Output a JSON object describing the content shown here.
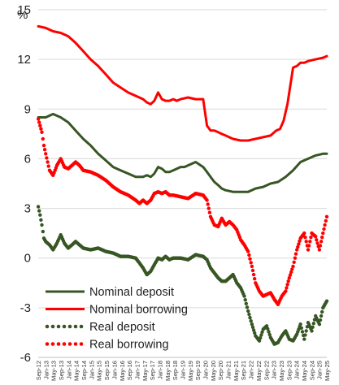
{
  "chart_data": {
    "type": "line",
    "title": "",
    "xlabel": "",
    "ylabel": "",
    "unit_label": "%",
    "ylim": [
      -6,
      15
    ],
    "yticks": [
      "-6",
      "-3",
      "0",
      "3",
      "6",
      "9",
      "12",
      "15"
    ],
    "xlim": [
      2012.667,
      2025.5
    ],
    "xticks": [
      "Sep-12",
      "Jan-13",
      "May-13",
      "Sep-13",
      "Jan-14",
      "May-14",
      "Sep-14",
      "Jan-15",
      "May-15",
      "Sep-15",
      "Jan-16",
      "May-16",
      "Sep-16",
      "Jan-17",
      "May-17",
      "Sep-17",
      "Jan-18",
      "May-18",
      "Sep-18",
      "Jan-19",
      "May-19",
      "Sep-19",
      "Jan-20",
      "May-20",
      "Sep-20",
      "Jan-21",
      "May-21",
      "Sep-21",
      "Jan-22",
      "May-22",
      "Sep-22",
      "Jan-23",
      "May-23",
      "Sep-23",
      "Jan-24",
      "May-24",
      "Sep-24",
      "Jan-25",
      "May-25"
    ],
    "grid": true,
    "legend": "bottom-left",
    "series": [
      {
        "name": "Nominal deposit",
        "style": "solid",
        "color": "#375623",
        "x": [
          2012.67,
          2013.0,
          2013.33,
          2013.67,
          2014.0,
          2014.33,
          2014.67,
          2015.0,
          2015.33,
          2015.67,
          2016.0,
          2016.33,
          2016.67,
          2017.0,
          2017.33,
          2017.5,
          2017.67,
          2017.83,
          2018.0,
          2018.17,
          2018.33,
          2018.5,
          2018.67,
          2018.83,
          2019.0,
          2019.17,
          2019.33,
          2019.67,
          2020.0,
          2020.17,
          2020.33,
          2020.5,
          2020.67,
          2020.83,
          2021.0,
          2021.33,
          2021.67,
          2022.0,
          2022.33,
          2022.67,
          2023.0,
          2023.33,
          2023.67,
          2024.0,
          2024.33,
          2024.67,
          2025.0,
          2025.33,
          2025.5
        ],
        "y": [
          8.5,
          8.5,
          8.7,
          8.5,
          8.2,
          7.7,
          7.2,
          6.8,
          6.3,
          5.9,
          5.5,
          5.3,
          5.1,
          4.9,
          4.9,
          5.0,
          4.9,
          5.1,
          5.5,
          5.4,
          5.2,
          5.2,
          5.3,
          5.4,
          5.5,
          5.5,
          5.6,
          5.8,
          5.5,
          5.2,
          4.9,
          4.6,
          4.4,
          4.2,
          4.1,
          4.0,
          4.0,
          4.0,
          4.2,
          4.3,
          4.5,
          4.6,
          4.9,
          5.3,
          5.8,
          6.0,
          6.2,
          6.3,
          6.3
        ]
      },
      {
        "name": "Nominal borrowing",
        "style": "solid",
        "color": "#ff0000",
        "x": [
          2012.67,
          2013.0,
          2013.33,
          2013.67,
          2014.0,
          2014.33,
          2014.67,
          2015.0,
          2015.33,
          2015.67,
          2016.0,
          2016.33,
          2016.67,
          2017.0,
          2017.33,
          2017.5,
          2017.67,
          2017.83,
          2018.0,
          2018.17,
          2018.33,
          2018.5,
          2018.67,
          2018.83,
          2019.0,
          2019.33,
          2019.67,
          2020.0,
          2020.17,
          2020.33,
          2020.42,
          2020.5,
          2020.67,
          2020.83,
          2021.0,
          2021.33,
          2021.67,
          2022.0,
          2022.33,
          2022.67,
          2023.0,
          2023.25,
          2023.42,
          2023.58,
          2023.75,
          2023.83,
          2023.92,
          2024.0,
          2024.17,
          2024.33,
          2024.5,
          2024.67,
          2025.0,
          2025.33,
          2025.5
        ],
        "y": [
          14.0,
          13.9,
          13.7,
          13.6,
          13.4,
          13.0,
          12.5,
          12.0,
          11.6,
          11.1,
          10.6,
          10.3,
          10.0,
          9.8,
          9.6,
          9.4,
          9.3,
          9.5,
          10.0,
          9.6,
          9.5,
          9.5,
          9.6,
          9.5,
          9.6,
          9.7,
          9.6,
          9.6,
          8.0,
          7.7,
          7.7,
          7.7,
          7.6,
          7.5,
          7.4,
          7.2,
          7.1,
          7.1,
          7.2,
          7.3,
          7.4,
          7.7,
          7.8,
          8.3,
          9.3,
          10.0,
          10.8,
          11.5,
          11.6,
          11.8,
          11.8,
          11.9,
          12.0,
          12.1,
          12.2
        ]
      },
      {
        "name": "Real deposit",
        "style": "dotted",
        "color": "#375623",
        "x": [
          2012.67,
          2012.75,
          2012.83,
          2012.92,
          2013.0,
          2013.17,
          2013.33,
          2013.5,
          2013.67,
          2013.83,
          2014.0,
          2014.17,
          2014.33,
          2014.5,
          2014.67,
          2015.0,
          2015.33,
          2015.67,
          2016.0,
          2016.33,
          2016.67,
          2017.0,
          2017.17,
          2017.33,
          2017.5,
          2017.67,
          2017.83,
          2018.0,
          2018.17,
          2018.33,
          2018.5,
          2018.67,
          2019.0,
          2019.33,
          2019.67,
          2020.0,
          2020.17,
          2020.33,
          2020.5,
          2020.67,
          2020.83,
          2021.0,
          2021.17,
          2021.33,
          2021.5,
          2021.67,
          2021.83,
          2022.0,
          2022.17,
          2022.33,
          2022.5,
          2022.67,
          2022.83,
          2023.0,
          2023.17,
          2023.33,
          2023.5,
          2023.67,
          2023.83,
          2024.0,
          2024.17,
          2024.33,
          2024.5,
          2024.67,
          2024.83,
          2025.0,
          2025.17,
          2025.33,
          2025.5
        ],
        "y": [
          3.1,
          2.6,
          2.0,
          1.2,
          1.0,
          0.8,
          0.5,
          0.9,
          1.4,
          0.9,
          0.6,
          0.8,
          1.0,
          0.8,
          0.6,
          0.5,
          0.6,
          0.4,
          0.3,
          0.1,
          0.1,
          0.0,
          -0.3,
          -0.6,
          -1.0,
          -0.8,
          -0.4,
          0.0,
          -0.1,
          0.1,
          -0.1,
          0.0,
          0.0,
          -0.1,
          0.2,
          0.1,
          -0.1,
          -0.6,
          -0.9,
          -1.2,
          -1.4,
          -1.4,
          -1.2,
          -1.0,
          -1.5,
          -1.8,
          -2.3,
          -3.2,
          -4.0,
          -4.7,
          -5.0,
          -4.3,
          -4.1,
          -4.8,
          -5.2,
          -5.1,
          -4.7,
          -4.4,
          -4.9,
          -5.0,
          -4.6,
          -4.0,
          -4.9,
          -3.9,
          -4.4,
          -3.5,
          -4.0,
          -3.0,
          -2.6
        ]
      },
      {
        "name": "Real borrowing",
        "style": "dotted",
        "color": "#ff0000",
        "x": [
          2012.67,
          2012.75,
          2012.83,
          2012.92,
          2013.0,
          2013.17,
          2013.33,
          2013.5,
          2013.67,
          2013.83,
          2014.0,
          2014.17,
          2014.33,
          2014.5,
          2014.67,
          2015.0,
          2015.33,
          2015.67,
          2016.0,
          2016.33,
          2016.67,
          2017.0,
          2017.17,
          2017.33,
          2017.5,
          2017.67,
          2017.83,
          2018.0,
          2018.17,
          2018.33,
          2018.5,
          2018.67,
          2019.0,
          2019.33,
          2019.67,
          2020.0,
          2020.17,
          2020.33,
          2020.5,
          2020.67,
          2020.83,
          2021.0,
          2021.17,
          2021.33,
          2021.5,
          2021.67,
          2021.83,
          2022.0,
          2022.17,
          2022.33,
          2022.5,
          2022.67,
          2022.83,
          2023.0,
          2023.17,
          2023.33,
          2023.5,
          2023.67,
          2023.83,
          2024.0,
          2024.17,
          2024.33,
          2024.5,
          2024.67,
          2024.83,
          2025.0,
          2025.17,
          2025.33,
          2025.5
        ],
        "y": [
          8.4,
          8.0,
          7.6,
          6.8,
          6.3,
          5.3,
          5.0,
          5.6,
          6.0,
          5.5,
          5.4,
          5.6,
          5.8,
          5.6,
          5.3,
          5.2,
          5.0,
          4.7,
          4.3,
          4.0,
          3.8,
          3.5,
          3.3,
          3.5,
          3.3,
          3.5,
          3.9,
          4.0,
          3.9,
          4.0,
          3.8,
          3.8,
          3.7,
          3.6,
          3.9,
          3.8,
          3.5,
          2.5,
          2.0,
          1.9,
          2.4,
          2.0,
          2.2,
          2.0,
          1.7,
          1.1,
          0.8,
          0.4,
          -0.5,
          -1.5,
          -2.0,
          -2.3,
          -2.2,
          -2.1,
          -2.5,
          -2.8,
          -2.3,
          -2.0,
          -1.2,
          -0.5,
          0.5,
          1.2,
          1.5,
          0.5,
          1.5,
          1.3,
          0.5,
          1.5,
          2.5
        ]
      }
    ]
  }
}
